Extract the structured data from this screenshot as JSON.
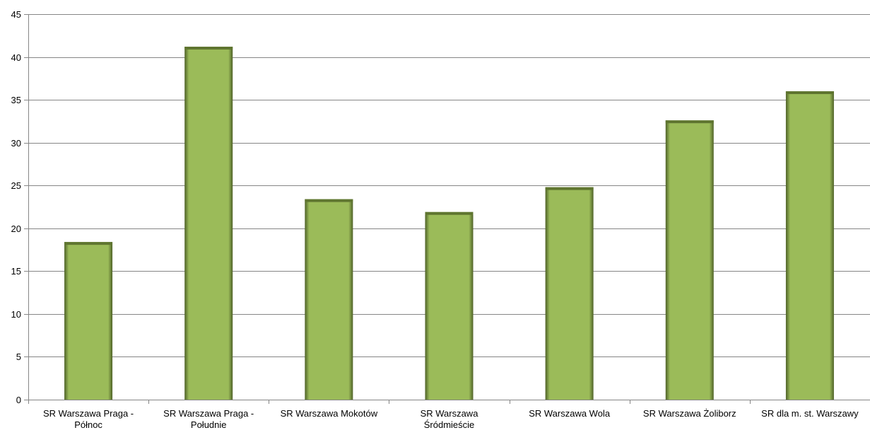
{
  "chart_data": {
    "type": "bar",
    "categories": [
      [
        "SR Warszawa Praga -",
        "Północ"
      ],
      [
        "SR Warszawa Praga -",
        "Południe"
      ],
      [
        "SR Warszawa Mokotów"
      ],
      [
        "SR Warszawa",
        "Śródmieście"
      ],
      [
        "SR Warszawa Wola"
      ],
      [
        "SR Warszawa Żoliborz"
      ],
      [
        "SR dla m. st. Warszawy"
      ]
    ],
    "values": [
      18.4,
      41.2,
      23.4,
      21.9,
      24.8,
      32.6,
      36.0
    ],
    "y_ticks": [
      "0",
      "5",
      "10",
      "15",
      "20",
      "25",
      "30",
      "35",
      "40",
      "45"
    ],
    "ylim": [
      0,
      45
    ],
    "grid": true,
    "legend": "none",
    "colors": {
      "bar": "#9bbb59",
      "bar_dark": "#4f6228",
      "bar_top": "#5f7530",
      "grid": "#868686",
      "axis": "#868686"
    }
  }
}
